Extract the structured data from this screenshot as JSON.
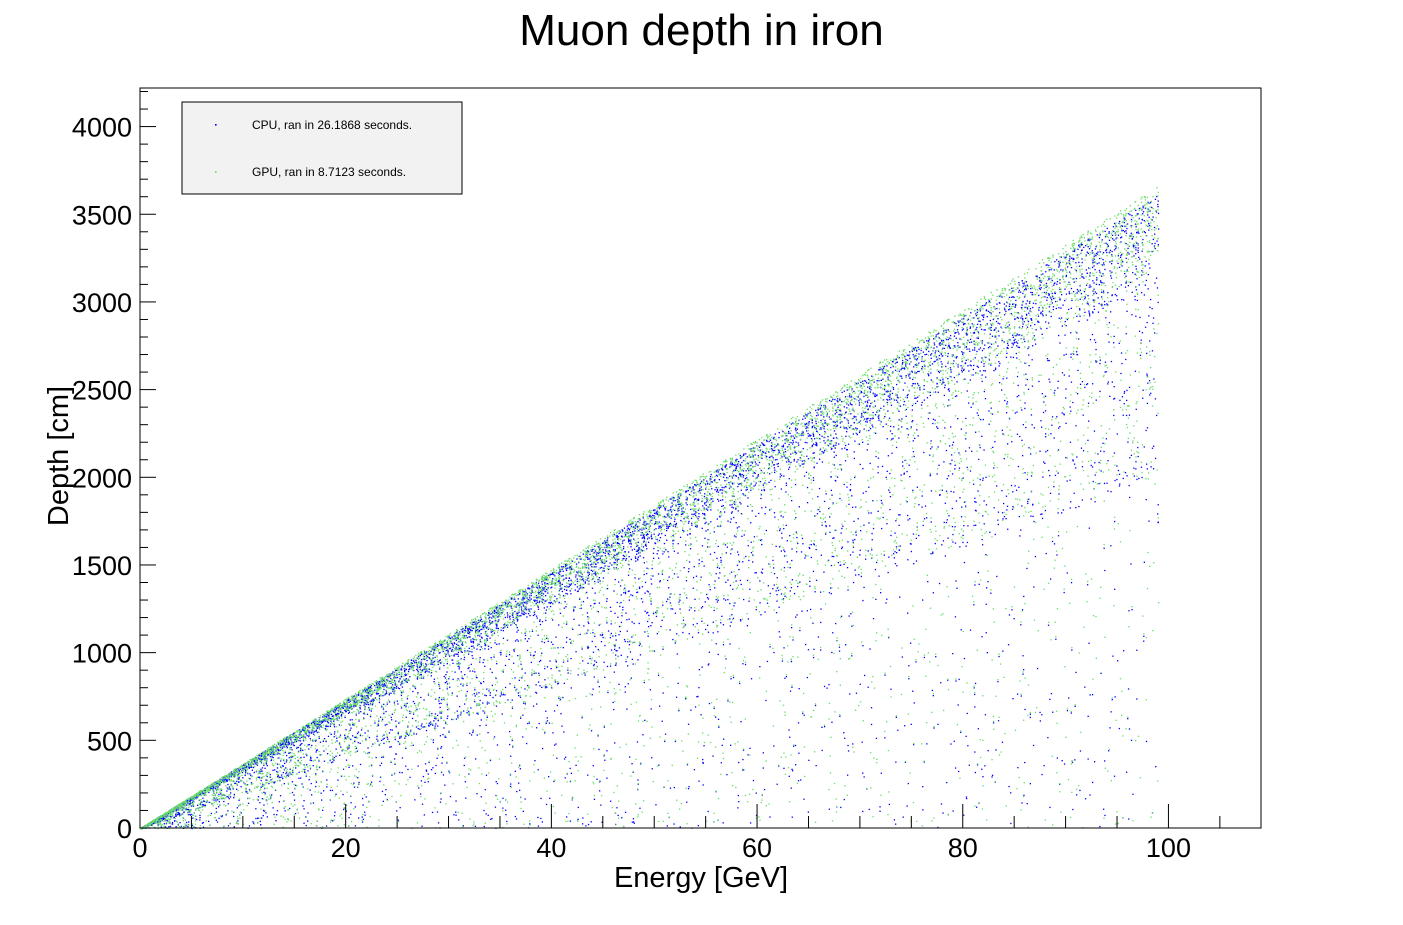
{
  "chart_data": {
    "type": "scatter",
    "title": "Muon depth in iron",
    "xlabel": "Energy [GeV]",
    "ylabel": "Depth [cm]",
    "xlim": [
      0,
      109
    ],
    "ylim": [
      0,
      4220
    ],
    "x_ticks": [
      0,
      20,
      40,
      60,
      80,
      100
    ],
    "y_ticks": [
      0,
      500,
      1000,
      1500,
      2000,
      2500,
      3000,
      3500,
      4000
    ],
    "x_tick_labels": [
      "0",
      "20",
      "40",
      "60",
      "80",
      "100"
    ],
    "y_tick_labels": [
      "0",
      "500",
      "1000",
      "1500",
      "2000",
      "2500",
      "3000",
      "3500",
      "4000"
    ],
    "grid": false,
    "legend_position": "top-left",
    "series": [
      {
        "name": "CPU, ran in 26.1868 seconds.",
        "color": "#0000ff",
        "energy_range": [
          0,
          99
        ],
        "max_depth_per_gev": 36.5,
        "density_peak_depth_per_gev": 34.5,
        "description_points": [
          [
            1,
            36
          ],
          [
            10,
            370
          ],
          [
            20,
            720
          ],
          [
            40,
            1400
          ],
          [
            60,
            2050
          ],
          [
            80,
            2700
          ],
          [
            95,
            3250
          ],
          [
            98,
            3550
          ]
        ]
      },
      {
        "name": "GPU, ran in 8.7123 seconds.",
        "color": "#66dd66",
        "energy_range": [
          0,
          99
        ],
        "max_depth_per_gev": 37.0,
        "density_peak_depth_per_gev": 34.5,
        "description_points": [
          [
            1,
            34
          ],
          [
            10,
            350
          ],
          [
            20,
            690
          ],
          [
            40,
            1350
          ],
          [
            60,
            2000
          ],
          [
            80,
            2650
          ],
          [
            95,
            3200
          ],
          [
            98,
            3500
          ]
        ]
      }
    ]
  }
}
